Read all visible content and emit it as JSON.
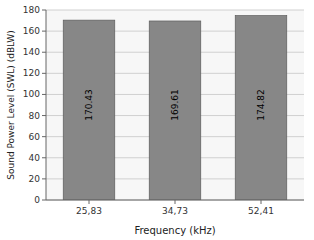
{
  "chart_data": {
    "type": "bar",
    "categories": [
      "25,83",
      "34,73",
      "52,41"
    ],
    "values": [
      170.43,
      169.61,
      174.82
    ],
    "color": "#878787",
    "xlabel": "Frequency (kHz)",
    "ylabel": "Sound Power Level (SWL) (dBLW)",
    "ylim": [
      0,
      180
    ],
    "yticks": [
      0,
      20,
      40,
      60,
      80,
      100,
      120,
      140,
      160,
      180
    ],
    "grid": true,
    "data_labels": true
  }
}
